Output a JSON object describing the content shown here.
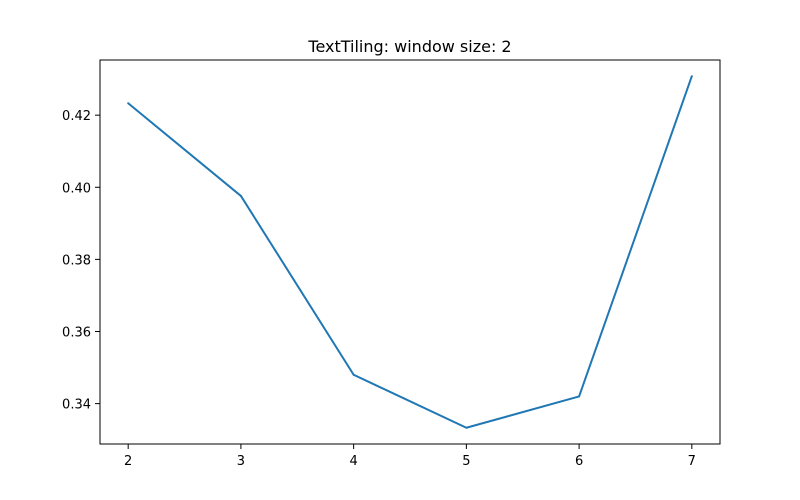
{
  "chart_data": {
    "type": "line",
    "title": "TextTiling: window size: 2",
    "xlabel": "",
    "ylabel": "",
    "x": [
      2,
      3,
      4,
      5,
      6,
      7
    ],
    "series": [
      {
        "values": [
          0.4233,
          0.3976,
          0.348,
          0.3333,
          0.342,
          0.4308
        ],
        "color": "#1f77b4"
      }
    ],
    "xlim": [
      1.75,
      7.25
    ],
    "ylim": [
      0.3288,
      0.4353
    ],
    "xticks": [
      2,
      3,
      4,
      5,
      6,
      7
    ],
    "xtick_labels": [
      "2",
      "3",
      "4",
      "5",
      "6",
      "7"
    ],
    "yticks": [
      0.34,
      0.36,
      0.38,
      0.4,
      0.42
    ],
    "ytick_labels": [
      "0.34",
      "0.36",
      "0.38",
      "0.40",
      "0.42"
    ],
    "grid": false,
    "legend": "none"
  }
}
